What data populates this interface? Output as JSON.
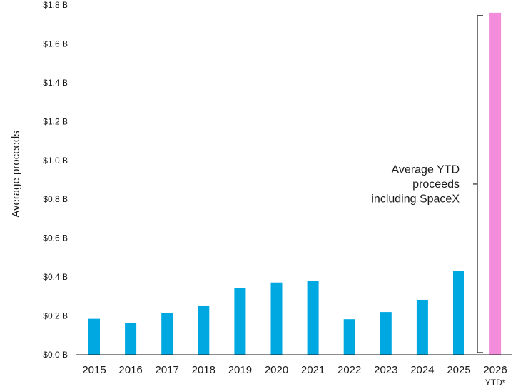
{
  "chart_data": {
    "type": "bar",
    "categories": [
      "2015",
      "2016",
      "2017",
      "2018",
      "2019",
      "2020",
      "2021",
      "2022",
      "2023",
      "2024",
      "2025",
      "2026"
    ],
    "category_sublabels": [
      "",
      "",
      "",
      "",
      "",
      "",
      "",
      "",
      "",
      "",
      "",
      "YTD*"
    ],
    "values": [
      0.185,
      0.165,
      0.215,
      0.25,
      0.345,
      0.372,
      0.38,
      0.183,
      0.22,
      0.283,
      0.432,
      1.76
    ],
    "units": "billions USD",
    "title": "",
    "xlabel": "",
    "ylabel": "Average proceeds",
    "ylim": [
      0,
      1.8
    ],
    "yticks": [
      0,
      0.2,
      0.4,
      0.6,
      0.8,
      1.0,
      1.2,
      1.4,
      1.6,
      1.8
    ],
    "ytick_labels": [
      "$0.0 B",
      "$0.2 B",
      "$0.4 B",
      "$0.6 B",
      "$0.8 B",
      "$1.0 B",
      "$1.2 B",
      "$1.4 B",
      "$1.6 B",
      "$1.8 B"
    ],
    "grid": false,
    "bar_color": "#00a8e1",
    "highlight_color": "#f48cdc",
    "highlight_index": 11,
    "annotation": {
      "lines": [
        "Average YTD",
        "proceeds",
        "including SpaceX"
      ],
      "bracket_target": "2026 YTD*"
    }
  }
}
